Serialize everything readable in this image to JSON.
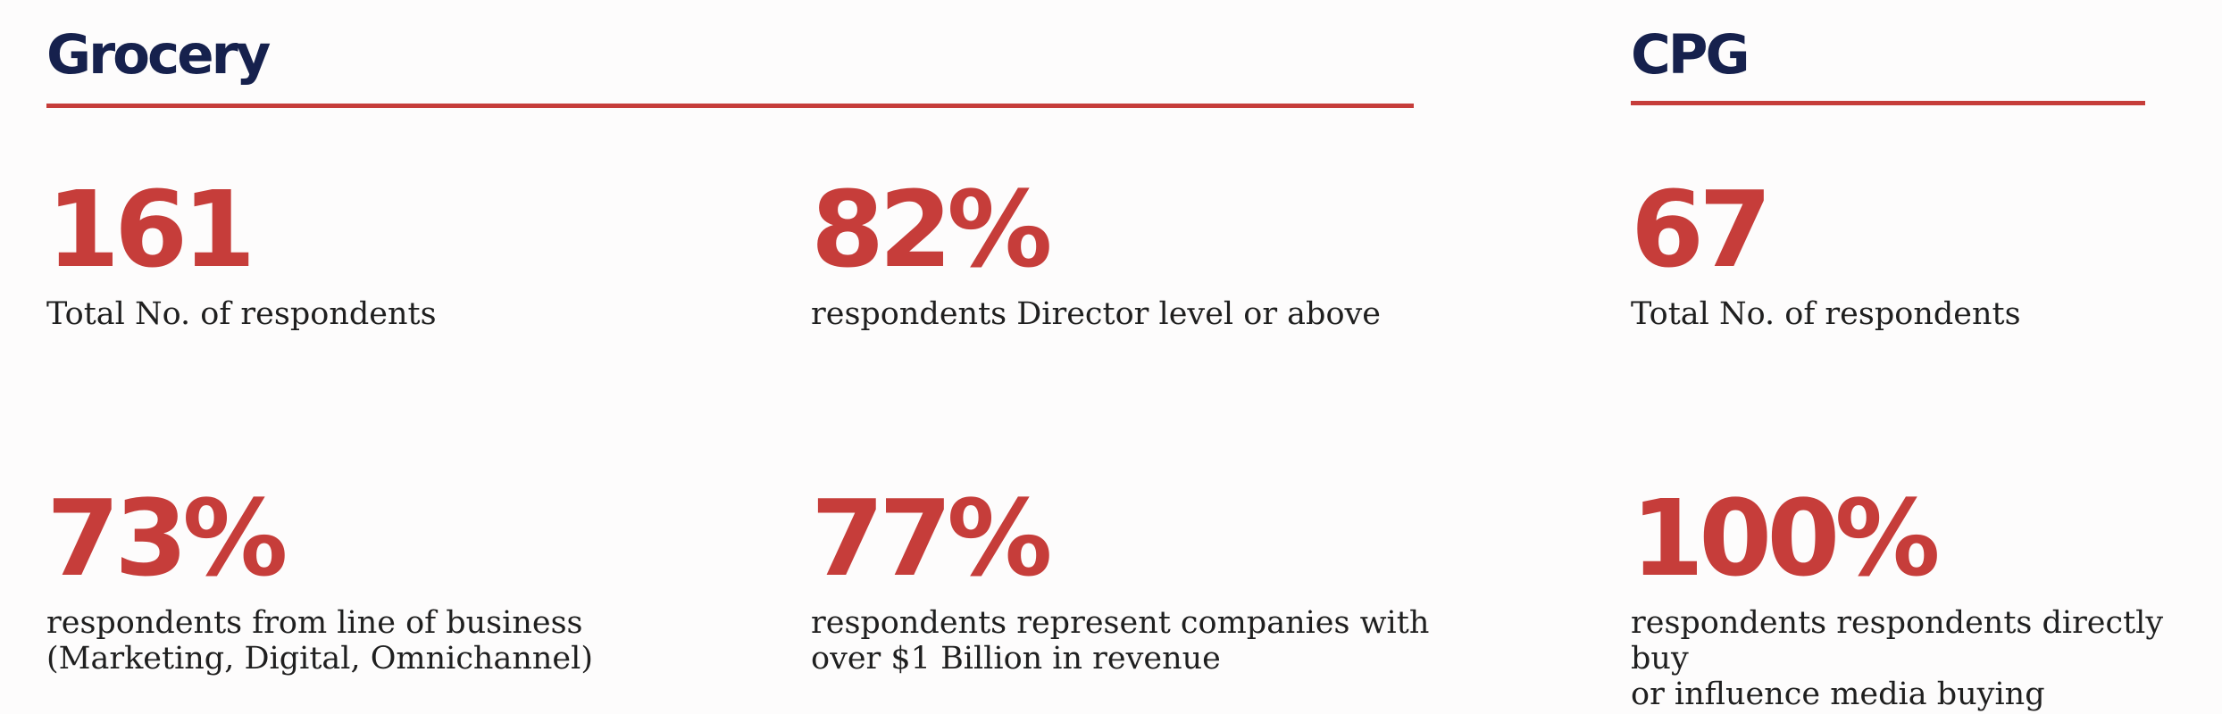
{
  "grocery": {
    "title": "Grocery",
    "stats": [
      {
        "value": "161",
        "label": "Total No. of respondents"
      },
      {
        "value": "82%",
        "label": "respondents Director level or above"
      },
      {
        "value": "73%",
        "label": "respondents from line of business",
        "label_2": "(Marketing, Digital, Omnichannel)"
      },
      {
        "value": "77%",
        "label": "respondents represent companies with",
        "label_2": "over $1 Billion in revenue"
      }
    ]
  },
  "cpg": {
    "title": "CPG",
    "stats": [
      {
        "value": "67",
        "label": "Total No. of respondents"
      },
      {
        "value": "100%",
        "label": "respondents respondents directly buy",
        "label_2": "or influence media buying"
      }
    ]
  },
  "colors": {
    "accent_red": "#c63d3a",
    "heading_navy": "#16214d",
    "text_dark": "#1f1f1f",
    "background": "#fdfcfc"
  }
}
